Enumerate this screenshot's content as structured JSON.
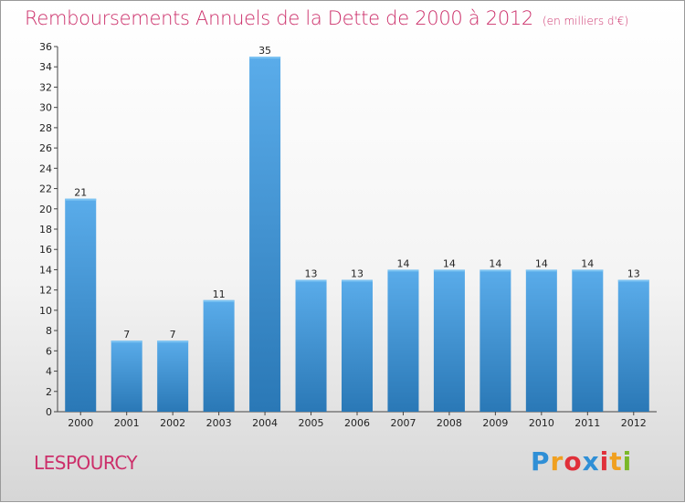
{
  "chart_data": {
    "type": "bar",
    "title": "Remboursements Annuels de la Dette de 2000 à 2012",
    "subtitle": "(en milliers d'€)",
    "categories": [
      "2000",
      "2001",
      "2002",
      "2003",
      "2004",
      "2005",
      "2006",
      "2007",
      "2008",
      "2009",
      "2010",
      "2011",
      "2012"
    ],
    "values": [
      21,
      7,
      7,
      11,
      35,
      13,
      13,
      14,
      14,
      14,
      14,
      14,
      13
    ],
    "ylim": [
      0,
      36
    ],
    "ytick_step": 2,
    "grid": false,
    "colors": {
      "bar_top": "#5aacea",
      "bar_bottom": "#2a78b6",
      "title": "#cc2f6a"
    }
  },
  "footer": {
    "commune": "LESPOURCY",
    "brand_letters": [
      {
        "ch": "P",
        "color": "#2f8fd6"
      },
      {
        "ch": "r",
        "color": "#f0a020"
      },
      {
        "ch": "o",
        "color": "#e0303a"
      },
      {
        "ch": "x",
        "color": "#2f8fd6"
      },
      {
        "ch": "i",
        "color": "#e0303a"
      },
      {
        "ch": "t",
        "color": "#f0a020"
      },
      {
        "ch": "i",
        "color": "#7ab828"
      }
    ]
  }
}
